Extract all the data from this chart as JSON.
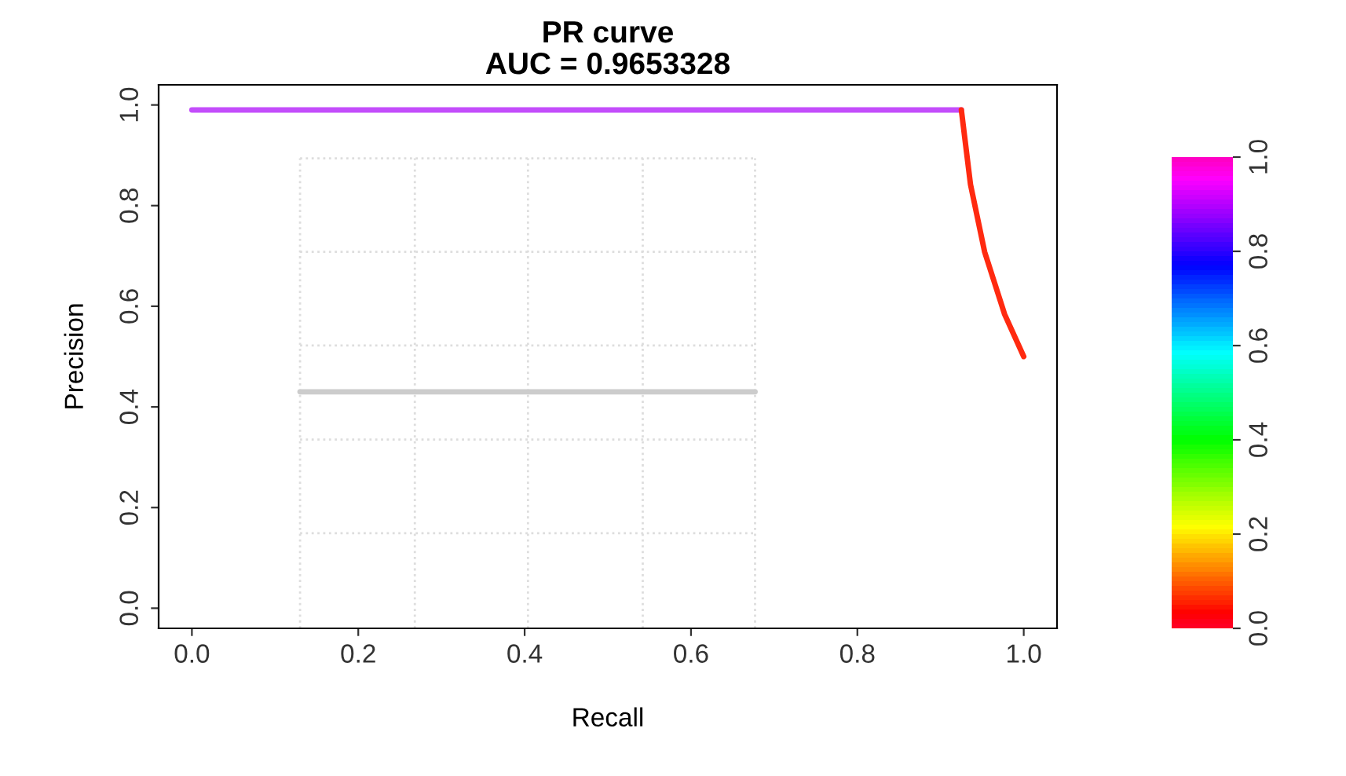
{
  "chart_data": {
    "type": "line",
    "title": "PR curve",
    "subtitle": "AUC = 0.9653328",
    "xlabel": "Recall",
    "ylabel": "Precision",
    "xlim": [
      -0.04,
      1.04
    ],
    "ylim": [
      -0.04,
      1.04
    ],
    "xticks": [
      {
        "value": 0,
        "label": "0.0"
      },
      0.2,
      0.4,
      0.6,
      0.8,
      {
        "value": 1,
        "label": "1.0"
      }
    ],
    "yticks": [
      {
        "value": 0,
        "label": "0.0"
      },
      0.2,
      0.4,
      0.6,
      0.8,
      {
        "value": 1,
        "label": "1.0"
      }
    ],
    "series": [
      {
        "color": "#c34dfb",
        "x": [
          0.0,
          0.925
        ],
        "values": [
          0.99,
          0.99
        ]
      },
      {
        "color": "#ff2a10",
        "x": [
          0.925,
          0.936,
          0.953,
          0.977,
          1.0
        ],
        "values": [
          0.99,
          0.842,
          0.708,
          0.584,
          0.5
        ]
      },
      {
        "color": "#cccccc",
        "x": [
          0.13,
          0.677
        ],
        "values": [
          0.43,
          0.43
        ]
      }
    ],
    "ref_lines": [
      {
        "axis": "x",
        "value": 0.13,
        "color": "#dddddd",
        "line_style": "dotted"
      },
      {
        "axis": "x",
        "value": 0.268,
        "color": "#dddddd",
        "line_style": "dotted"
      },
      {
        "axis": "x",
        "value": 0.404,
        "color": "#dddddd",
        "line_style": "dotted"
      },
      {
        "axis": "x",
        "value": 0.542,
        "color": "#dddddd",
        "line_style": "dotted"
      },
      {
        "axis": "x",
        "value": 0.677,
        "color": "#dddddd",
        "line_style": "dotted"
      },
      {
        "axis": "y",
        "value": 0.894,
        "color": "#dddddd",
        "line_style": "dotted"
      },
      {
        "axis": "y",
        "value": 0.708,
        "color": "#dddddd",
        "line_style": "dotted"
      },
      {
        "axis": "y",
        "value": 0.522,
        "color": "#dddddd",
        "line_style": "dotted"
      },
      {
        "axis": "y",
        "value": 0.335,
        "color": "#dddddd",
        "line_style": "dotted"
      },
      {
        "axis": "y",
        "value": 0.149,
        "color": "#dddddd",
        "line_style": "dotted"
      }
    ],
    "clim": [
      0,
      1
    ],
    "cticks": [
      {
        "value": 0,
        "label": "0.0"
      },
      0.2,
      0.4,
      0.6,
      0.8,
      {
        "value": 1,
        "label": "1.0"
      }
    ],
    "legend": false,
    "grid": false
  }
}
